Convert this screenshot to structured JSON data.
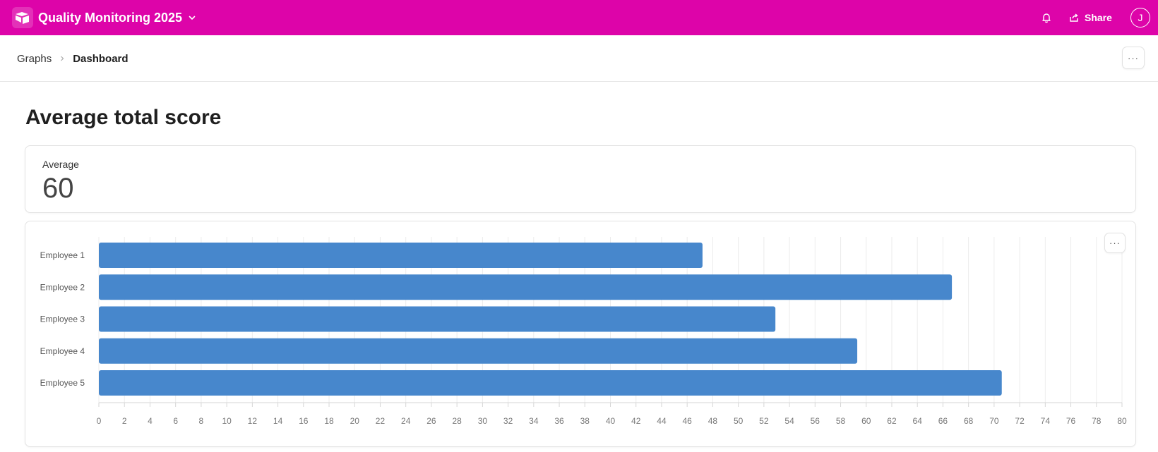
{
  "topbar": {
    "base_name": "Quality Monitoring 2025",
    "share_label": "Share",
    "avatar_initial": "J",
    "color": "#dd04a9"
  },
  "breadcrumb": {
    "parent": "Graphs",
    "current": "Dashboard"
  },
  "more_label": "···",
  "page_title": "Average total score",
  "summary": {
    "label": "Average",
    "value": "60"
  },
  "chart_data": {
    "type": "bar",
    "orientation": "horizontal",
    "categories": [
      "Employee 1",
      "Employee 2",
      "Employee 3",
      "Employee 4",
      "Employee 5"
    ],
    "values": [
      47.2,
      66.7,
      52.9,
      59.3,
      70.6
    ],
    "xlim": [
      0,
      80
    ],
    "xticks": [
      0,
      2,
      4,
      6,
      8,
      10,
      12,
      14,
      16,
      18,
      20,
      22,
      24,
      26,
      28,
      30,
      32,
      34,
      36,
      38,
      40,
      42,
      44,
      46,
      48,
      50,
      52,
      54,
      56,
      58,
      60,
      62,
      64,
      66,
      68,
      70,
      72,
      74,
      76,
      78,
      80
    ],
    "grid": true,
    "bar_color": "#4787cc"
  }
}
